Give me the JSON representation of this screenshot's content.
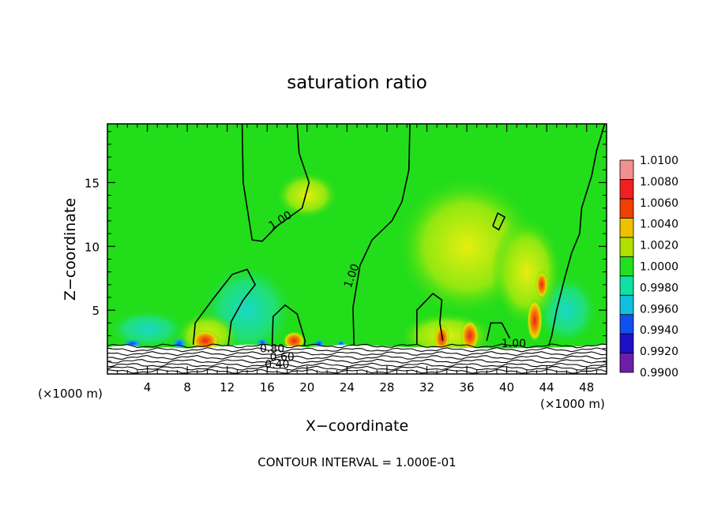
{
  "chart_data": {
    "type": "heatmap",
    "title": "saturation ratio",
    "xlabel": "X−coordinate",
    "ylabel": "Z−coordinate",
    "x_unit_left": "(×1000 m)",
    "x_unit_right": "(×1000 m)",
    "footer": "CONTOUR INTERVAL = 1.000E-01",
    "xlim": [
      0,
      50
    ],
    "ylim": [
      0,
      19.6
    ],
    "x_ticks": [
      4,
      8,
      12,
      16,
      20,
      24,
      28,
      32,
      36,
      40,
      44,
      48
    ],
    "x_tick_labels": [
      "4",
      "8",
      "12",
      "16",
      "20",
      "24",
      "28",
      "32",
      "36",
      "40",
      "44",
      "48"
    ],
    "y_ticks": [
      5,
      10,
      15
    ],
    "y_tick_labels": [
      "5",
      "10",
      "15"
    ],
    "colorbar": {
      "levels": [
        0.99,
        0.992,
        0.994,
        0.996,
        0.998,
        1.0,
        1.002,
        1.004,
        1.006,
        1.008,
        1.01
      ],
      "labels": [
        "1.0100",
        "1.0080",
        "1.0060",
        "1.0040",
        "1.0020",
        "1.0000",
        "0.9980",
        "0.9960",
        "0.9940",
        "0.9920",
        "0.9900"
      ],
      "colors": [
        "#6a1fa6",
        "#1f10c8",
        "#1050f0",
        "#10c0e0",
        "#10e0a0",
        "#20e020",
        "#b0e000",
        "#f0c000",
        "#f04000",
        "#f02020",
        "#f09090"
      ]
    },
    "contour_labels": [
      {
        "text": "1.00",
        "x": 17.5,
        "y": 11.8,
        "rotate": -32
      },
      {
        "text": "1.00",
        "x": 24.8,
        "y": 7.6,
        "rotate": -70
      },
      {
        "text": "1.00",
        "x": 40.7,
        "y": 2.1,
        "rotate": 0
      },
      {
        "text": "0.80",
        "x": 16.5,
        "y": 1.7,
        "rotate": 0
      },
      {
        "text": "0.60",
        "x": 17.5,
        "y": 1.05,
        "rotate": 0
      },
      {
        "text": "0.40",
        "x": 17.0,
        "y": 0.45,
        "rotate": 0
      }
    ],
    "contour_interval": 0.1,
    "colors": {
      "background_field": "#22dd1a",
      "contour_line": "#000000"
    }
  }
}
